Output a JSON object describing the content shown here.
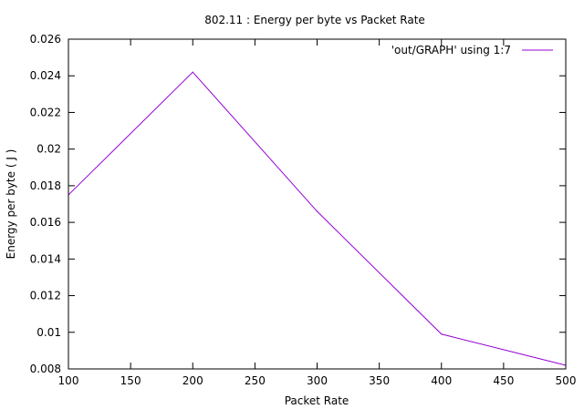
{
  "chart_data": {
    "type": "line",
    "title": "802.11 : Energy per byte vs Packet Rate",
    "xlabel": "Packet Rate",
    "ylabel": "Energy per byte ( J )",
    "xlim": [
      100,
      500
    ],
    "ylim": [
      0.008,
      0.026
    ],
    "x_ticks": [
      "100",
      "150",
      "200",
      "250",
      "300",
      "350",
      "400",
      "450",
      "500"
    ],
    "y_ticks": [
      "0.008",
      "0.01",
      "0.012",
      "0.014",
      "0.016",
      "0.018",
      "0.02",
      "0.022",
      "0.024",
      "0.026"
    ],
    "grid": false,
    "legend_position": "top-right",
    "series": [
      {
        "name": "'out/GRAPH' using 1:7",
        "color": "#9400d3",
        "x": [
          100,
          200,
          300,
          400,
          500
        ],
        "y": [
          0.0175,
          0.0242,
          0.0166,
          0.0099,
          0.0082
        ]
      }
    ]
  }
}
